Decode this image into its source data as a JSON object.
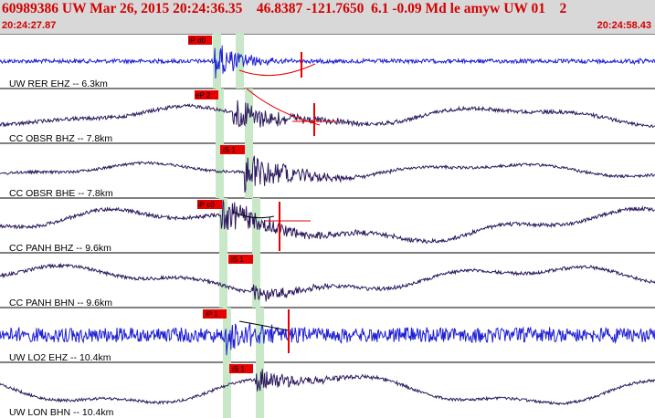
{
  "header": {
    "title": "60989386 UW Mar 26, 2015 20:24:36.35    46.8387 -121.7650  6.1 -0.09 Md le amyw UW 01    2",
    "start_time": "20:24:27.87",
    "end_time": "20:24:58.43"
  },
  "traces": [
    {
      "label": "UW RER EHZ -- 6.3km",
      "color": "#1f1fd6",
      "pick": "iP d0"
    },
    {
      "label": "CC OBSR BHZ -- 7.8km",
      "color": "#2d1a5e",
      "pick": "eP 2"
    },
    {
      "label": "CC OBSR BHE -- 7.8km",
      "color": "#2d1a5e",
      "pick": "iS 1"
    },
    {
      "label": "CC PANH BHZ -- 9.6km",
      "color": "#2d1a5e",
      "pick": "iP c0"
    },
    {
      "label": "CC PANH BHN -- 9.6km",
      "color": "#2d1a5e",
      "pick": "iS 1"
    },
    {
      "label": "UW LO2 EHZ -- 10.4km",
      "color": "#1f1fd6",
      "pick": "iP 1"
    },
    {
      "label": "UW LON BHN -- 10.4km",
      "color": "#2d1a5e",
      "pick": "iS 1"
    }
  ],
  "colors": {
    "title": "#d40000",
    "pick_flag": "#e60000",
    "pick_window": "#c8e8c8",
    "grid": "#000000"
  }
}
